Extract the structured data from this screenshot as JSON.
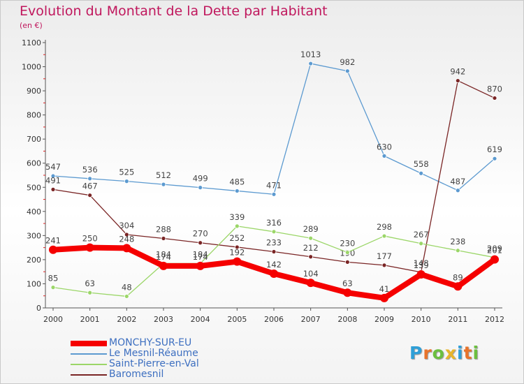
{
  "header": {
    "title": "Evolution du Montant de la Dette par Habitant",
    "subtitle": "(en €)"
  },
  "logo": {
    "letters": [
      "P",
      "r",
      "o",
      "x",
      "i",
      "t",
      "i"
    ],
    "colors": [
      "#2f9fd7",
      "#e8732b",
      "#6cbf3f",
      "#e8b52b",
      "#2f9fd7",
      "#e8732b",
      "#6cbf3f"
    ]
  },
  "chart_data": {
    "type": "line",
    "title": "Evolution du Montant de la Dette par Habitant",
    "subtitle": "(en €)",
    "xlabel": "",
    "ylabel": "",
    "x": [
      "2000",
      "2001",
      "2002",
      "2003",
      "2004",
      "2005",
      "2006",
      "2007",
      "2008",
      "2009",
      "2010",
      "2011",
      "2012"
    ],
    "yticks": [
      "0",
      "100",
      "200",
      "300",
      "400",
      "500",
      "600",
      "700",
      "800",
      "900",
      "1000",
      "1100"
    ],
    "ylim": [
      0,
      1100
    ],
    "grid": false,
    "legend": "bottom-left",
    "series": [
      {
        "name": "Le Mesnil-Réaume",
        "color": "#5c9ad0",
        "values": [
          547,
          536,
          525,
          512,
          499,
          485,
          471,
          1013,
          982,
          630,
          558,
          487,
          619
        ],
        "labels": [
          "547",
          "536",
          "525",
          "512",
          "499",
          "485",
          "471",
          "1013",
          "982",
          "630",
          "558",
          "487",
          "619"
        ]
      },
      {
        "name": "Baromesnil",
        "color": "#7a2525",
        "values": [
          491,
          467,
          304,
          288,
          270,
          252,
          233,
          212,
          190,
          177,
          148,
          942,
          870
        ],
        "labels": [
          "491",
          "467",
          "304",
          "288",
          "270",
          "252",
          "233",
          "212",
          "190",
          "177",
          "148",
          "942",
          "870"
        ]
      },
      {
        "name": "Saint-Pierre-en-Val",
        "color": "#9bd668",
        "values": [
          85,
          63,
          48,
          184,
          184,
          339,
          316,
          289,
          230,
          298,
          267,
          238,
          209
        ],
        "labels": [
          "85",
          "63",
          "48",
          "184",
          "184",
          "339",
          "316",
          "289",
          "230",
          "298",
          "267",
          "238",
          "209"
        ]
      },
      {
        "name": "MONCHY-SUR-EU",
        "color": "#f50000",
        "values": [
          241,
          250,
          248,
          174,
          174,
          192,
          142,
          104,
          63,
          41,
          139,
          89,
          201
        ],
        "labels": [
          "241",
          "250",
          "248",
          "174",
          "174",
          "192",
          "142",
          "104",
          "63",
          "41",
          "139",
          "89",
          "201"
        ]
      }
    ],
    "legend_order": [
      "MONCHY-SUR-EU",
      "Le Mesnil-Réaume",
      "Saint-Pierre-en-Val",
      "Baromesnil"
    ]
  }
}
